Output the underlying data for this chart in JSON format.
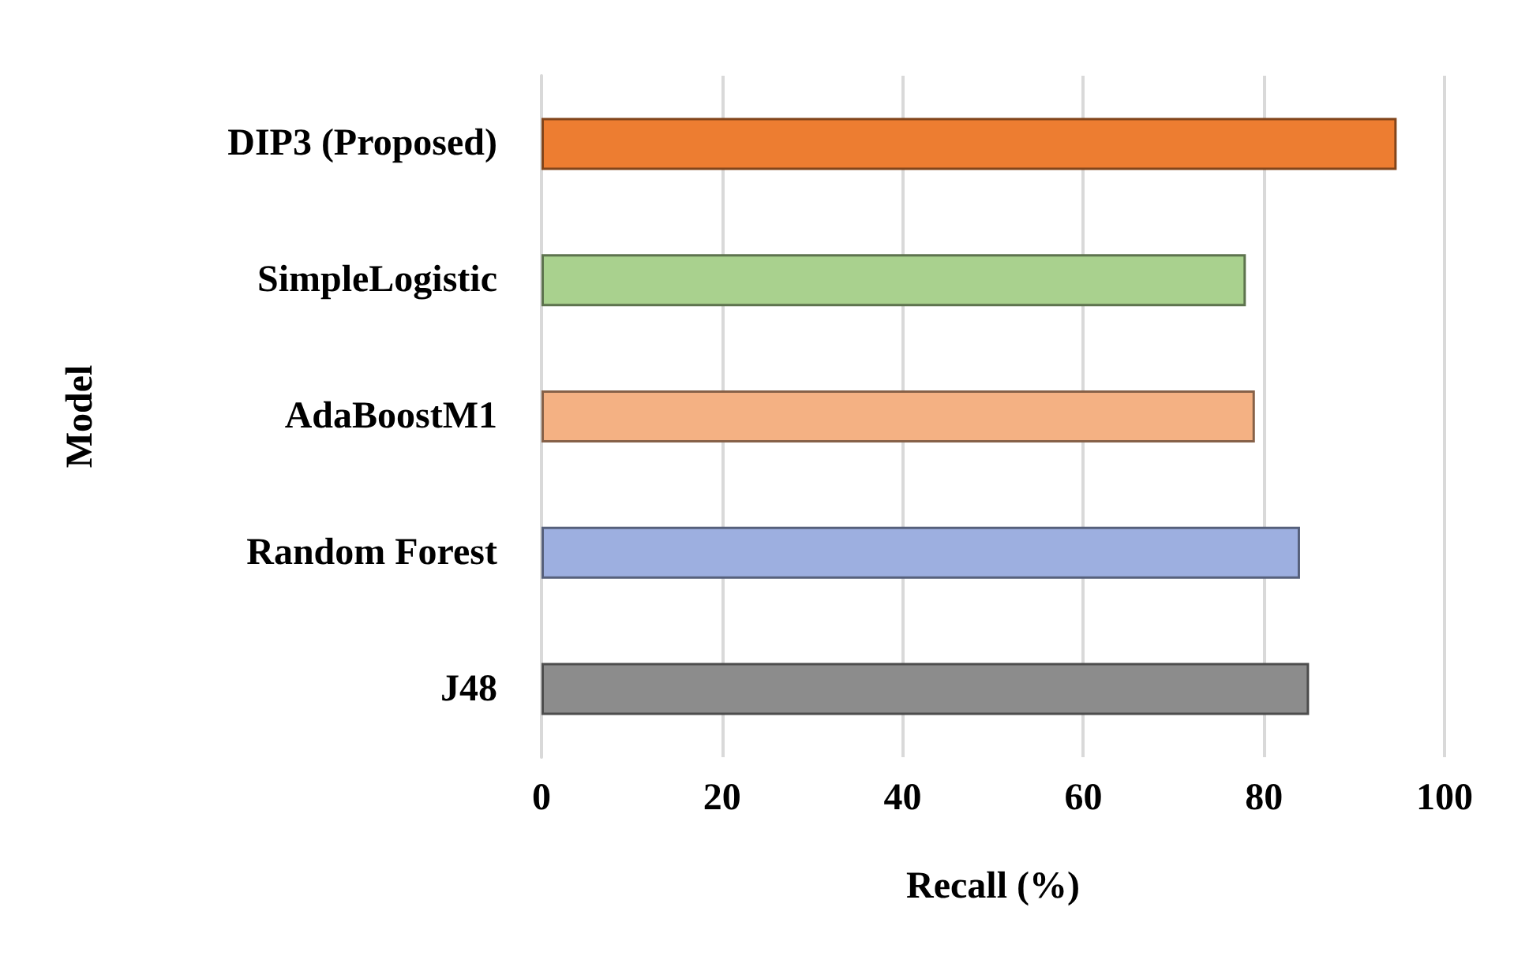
{
  "chart_data": {
    "type": "bar",
    "orientation": "horizontal",
    "xlabel": "Recall (%)",
    "ylabel": "Model",
    "categories": [
      "DIP3 (Proposed)",
      "SimpleLogistic",
      "AdaBoostM1",
      "Random Forest",
      "J48"
    ],
    "values": [
      94.7,
      78,
      79,
      84,
      85
    ],
    "colors": [
      "#ed7d31",
      "#a9d18e",
      "#f4b183",
      "#9dafe0",
      "#8c8c8c"
    ],
    "xlim": [
      0,
      100
    ],
    "xticks": [
      0,
      20,
      40,
      60,
      80,
      100
    ],
    "grid": "x"
  }
}
